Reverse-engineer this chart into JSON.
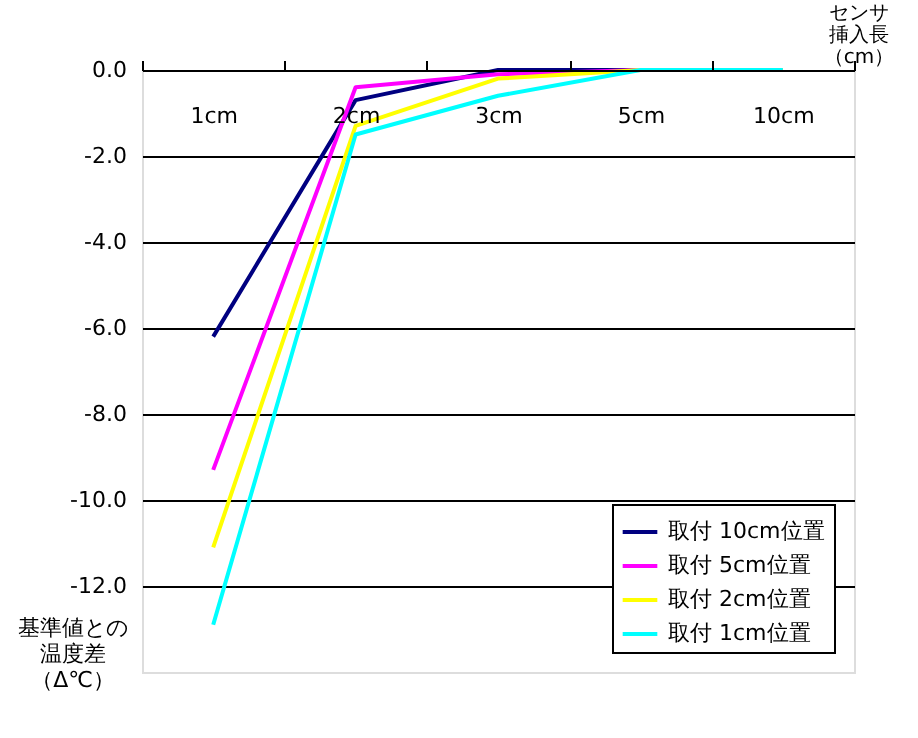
{
  "chart_data": {
    "type": "line",
    "xlabel": "センサ挿入長（cm）",
    "ylabel": "基準値との温度差（Δ℃）",
    "categories": [
      "1cm",
      "2cm",
      "3cm",
      "5cm",
      "10cm"
    ],
    "series": [
      {
        "name": "取付 10cm位置",
        "color": "#000080",
        "values": [
          -6.2,
          -0.7,
          0.0,
          0.0,
          0.0
        ]
      },
      {
        "name": "取付 5cm位置",
        "color": "#ff00ff",
        "values": [
          -9.3,
          -0.4,
          -0.1,
          0.0,
          0.0
        ]
      },
      {
        "name": "取付 2cm位置",
        "color": "#ffff00",
        "values": [
          -11.1,
          -1.3,
          -0.2,
          0.0,
          0.0
        ]
      },
      {
        "name": "取付 1cm位置",
        "color": "#00ffff",
        "values": [
          -12.9,
          -1.5,
          -0.6,
          0.0,
          0.0
        ]
      }
    ],
    "ylim": [
      -14,
      0
    ],
    "yticks": [
      {
        "value": 0,
        "label": "0.0"
      },
      {
        "value": -2,
        "label": "-2.0"
      },
      {
        "value": -4,
        "label": "-4.0"
      },
      {
        "value": -6,
        "label": "-6.0"
      },
      {
        "value": -8,
        "label": "-8.0"
      },
      {
        "value": -10,
        "label": "-10.0"
      },
      {
        "value": -12,
        "label": "-12.0"
      }
    ],
    "grid": "y",
    "legend": "bottom right",
    "marker": "none",
    "line_style": "solid"
  }
}
